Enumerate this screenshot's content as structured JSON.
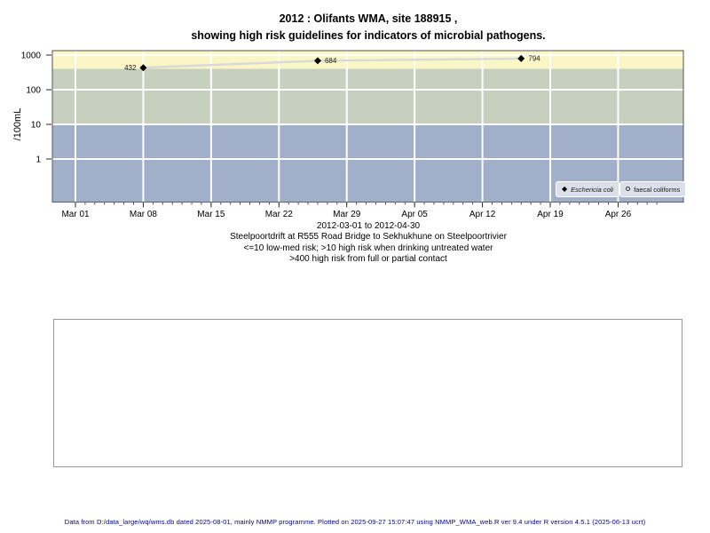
{
  "title": {
    "line1": "2012 : Olifants WMA, site 188915 ,",
    "line2": "showing high risk guidelines for indicators of microbial pathogens."
  },
  "chart_data": {
    "type": "line",
    "y_scale": "log",
    "ylabel": "/100mL",
    "x_start": "2012-03-01",
    "x_end": "2012-04-30",
    "ylim": [
      0.06,
      1300
    ],
    "grid": true,
    "legend_position": "bottom-right",
    "y_ticks": [
      {
        "value": 1,
        "label": "1"
      },
      {
        "value": 10,
        "label": "10"
      },
      {
        "value": 100,
        "label": "100"
      },
      {
        "value": 1000,
        "label": "1000"
      }
    ],
    "x_ticks": [
      {
        "date": "2012-03-01",
        "label": "Mar 01"
      },
      {
        "date": "2012-03-08",
        "label": "Mar 08"
      },
      {
        "date": "2012-03-15",
        "label": "Mar 15"
      },
      {
        "date": "2012-03-22",
        "label": "Mar 22"
      },
      {
        "date": "2012-03-29",
        "label": "Mar 29"
      },
      {
        "date": "2012-04-05",
        "label": "Apr 05"
      },
      {
        "date": "2012-04-12",
        "label": "Apr 12"
      },
      {
        "date": "2012-04-19",
        "label": "Apr 19"
      },
      {
        "date": "2012-04-26",
        "label": "Apr 26"
      }
    ],
    "bands": [
      {
        "name": "band-high-risk-contact",
        "from": 400,
        "to": 1400,
        "color": "#FBF6C5"
      },
      {
        "name": "band-high-risk-drinking",
        "from": 10,
        "to": 400,
        "color": "#C7CFBE"
      },
      {
        "name": "band-low-med-risk",
        "from": 0.05,
        "to": 10,
        "color": "#A1AFCB"
      }
    ],
    "series": [
      {
        "name": "Eschericia coli",
        "marker": "filled-diamond",
        "line_color": "#D9D9D9",
        "marker_color": "#000000",
        "points": [
          {
            "date": "2012-03-08",
            "value": 432,
            "label": "432",
            "label_side": "left"
          },
          {
            "date": "2012-03-26",
            "value": 684,
            "label": "684",
            "label_side": "right"
          },
          {
            "date": "2012-04-16",
            "value": 794,
            "label": "794",
            "label_side": "right"
          }
        ]
      },
      {
        "name": "faecal coliforms",
        "marker": "open-circle",
        "line_color": "#D9D9D9",
        "marker_color": "#555555",
        "points": []
      }
    ]
  },
  "legend": {
    "item1": "Eschericia coli",
    "item2": "faecal coliforms"
  },
  "subtitle": {
    "line1": "2012-03-01 to 2012-04-30",
    "line2": "Steelpoortdrift at R555 Road Bridge to Sekhukhune on Steelpoortrivier",
    "line3": "<=10 low-med risk; >10 high risk when drinking untreated water",
    "line4": ">400 high risk from full or partial contact"
  },
  "footer": {
    "text": "Data from D:/data_large/wq/wms.db dated 2025-08-01, mainly NMMP programme. Plotted on 2025-09-27 15:07:47 using NMMP_WMA_web.R ver 9.4 under R version 4.5.1 (2025-06-13 ucrt)",
    "color": "#00008B"
  },
  "colors": {
    "grid": "#FFFFFF",
    "plot_border": "#6E6E6E",
    "tick": "#2A2A2A",
    "legend_bg": "#DADFE9"
  }
}
